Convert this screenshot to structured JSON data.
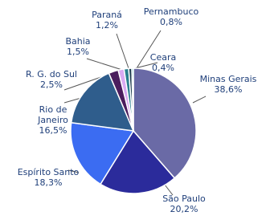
{
  "chart_data": {
    "type": "pie",
    "categories": [
      "Minas Gerais",
      "São Paulo",
      "Espírito Santo",
      "Rio de Janeiro",
      "R. G. do Sul",
      "Bahia",
      "Paraná",
      "Pernambuco",
      "Ceara"
    ],
    "values": [
      38.6,
      20.2,
      18.3,
      16.5,
      2.5,
      1.5,
      1.2,
      0.8,
      0.4
    ],
    "value_labels": [
      "38,6%",
      "20,2%",
      "18,3%",
      "16,5%",
      "2,5%",
      "1,5%",
      "1,2%",
      "0,8%",
      "0,4%"
    ],
    "colors": [
      "#6a6aa6",
      "#2b2b9b",
      "#3b6cf2",
      "#2f5d8c",
      "#4b1d5e",
      "#d9aaf2",
      "#2a7f8f",
      "#1d3c4d",
      "#2cb3b3"
    ]
  }
}
